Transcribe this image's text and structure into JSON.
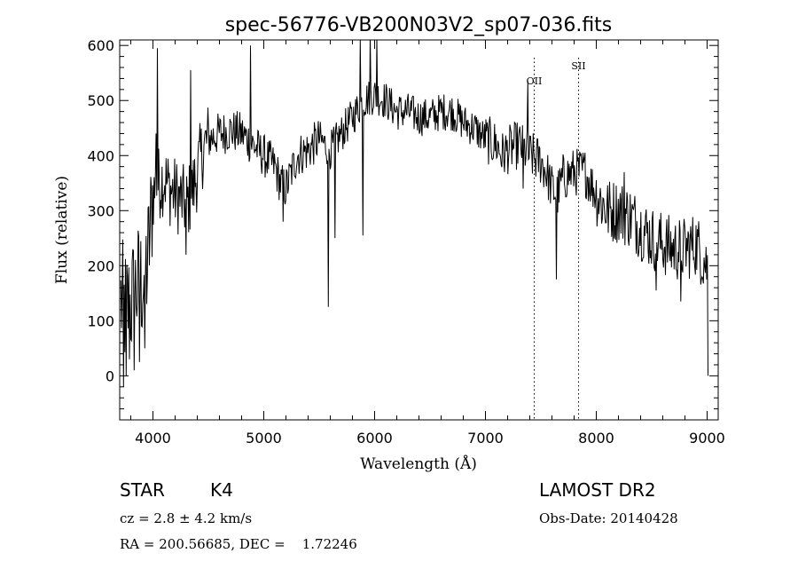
{
  "chart_data": {
    "type": "line",
    "title": "spec-56776-VB200N03V2_sp07-036.fits",
    "xlabel": "Wavelength (Å)",
    "ylabel": "Flux (relative)",
    "xlim": [
      3700,
      9100
    ],
    "ylim": [
      -80,
      610
    ],
    "xticks": [
      4000,
      5000,
      6000,
      7000,
      8000,
      9000
    ],
    "yticks": [
      0,
      100,
      200,
      300,
      400,
      500,
      600
    ],
    "grid": false,
    "line_color": "#000000",
    "emission_lines": [
      {
        "label": "OII",
        "x": 7440
      },
      {
        "label": "SII",
        "x": 7840
      }
    ],
    "anchors": [
      [
        3700,
        140
      ],
      [
        3750,
        120
      ],
      [
        3800,
        130
      ],
      [
        3850,
        160
      ],
      [
        3900,
        170
      ],
      [
        3950,
        200
      ],
      [
        4000,
        330
      ],
      [
        4050,
        350
      ],
      [
        4100,
        360
      ],
      [
        4150,
        340
      ],
      [
        4200,
        330
      ],
      [
        4250,
        320
      ],
      [
        4300,
        310
      ],
      [
        4350,
        330
      ],
      [
        4400,
        370
      ],
      [
        4450,
        410
      ],
      [
        4500,
        430
      ],
      [
        4600,
        440
      ],
      [
        4700,
        445
      ],
      [
        4800,
        440
      ],
      [
        4900,
        420
      ],
      [
        5000,
        400
      ],
      [
        5100,
        380
      ],
      [
        5150,
        350
      ],
      [
        5200,
        340
      ],
      [
        5300,
        400
      ],
      [
        5400,
        410
      ],
      [
        5500,
        430
      ],
      [
        5600,
        410
      ],
      [
        5700,
        440
      ],
      [
        5800,
        470
      ],
      [
        5900,
        500
      ],
      [
        6000,
        510
      ],
      [
        6100,
        500
      ],
      [
        6200,
        480
      ],
      [
        6300,
        480
      ],
      [
        6400,
        470
      ],
      [
        6500,
        470
      ],
      [
        6600,
        480
      ],
      [
        6700,
        480
      ],
      [
        6800,
        460
      ],
      [
        6900,
        450
      ],
      [
        7000,
        430
      ],
      [
        7100,
        420
      ],
      [
        7150,
        400
      ],
      [
        7200,
        410
      ],
      [
        7300,
        420
      ],
      [
        7400,
        400
      ],
      [
        7500,
        390
      ],
      [
        7550,
        370
      ],
      [
        7600,
        340
      ],
      [
        7650,
        330
      ],
      [
        7700,
        360
      ],
      [
        7800,
        370
      ],
      [
        7900,
        370
      ],
      [
        8000,
        330
      ],
      [
        8100,
        300
      ],
      [
        8200,
        300
      ],
      [
        8300,
        290
      ],
      [
        8400,
        270
      ],
      [
        8500,
        250
      ],
      [
        8600,
        240
      ],
      [
        8700,
        230
      ],
      [
        8800,
        230
      ],
      [
        8900,
        240
      ],
      [
        9000,
        200
      ]
    ],
    "dips": [
      [
        3735,
        -20
      ],
      [
        3760,
        0
      ],
      [
        3790,
        30
      ],
      [
        3830,
        10
      ],
      [
        3880,
        25
      ],
      [
        3925,
        50
      ],
      [
        4300,
        220
      ],
      [
        5175,
        280
      ],
      [
        5580,
        125
      ],
      [
        5645,
        250
      ],
      [
        5895,
        255
      ],
      [
        7340,
        340
      ],
      [
        7640,
        175
      ],
      [
        8540,
        155
      ],
      [
        8760,
        135
      ],
      [
        9010,
        0
      ]
    ],
    "peaks": [
      [
        4030,
        440
      ],
      [
        4040,
        595
      ],
      [
        4340,
        555
      ],
      [
        4880,
        600
      ],
      [
        5870,
        610
      ],
      [
        5960,
        620
      ],
      [
        6020,
        615
      ],
      [
        7380,
        535
      ],
      [
        8250,
        370
      ]
    ]
  },
  "info": {
    "object_type": "STAR",
    "subclass": "K4",
    "survey": "LAMOST DR2",
    "cz": "cz = 2.8 ± 4.2 km/s",
    "obs_date": "Obs-Date: 20140428",
    "coords": "RA = 200.56685, DEC =    1.72246"
  }
}
